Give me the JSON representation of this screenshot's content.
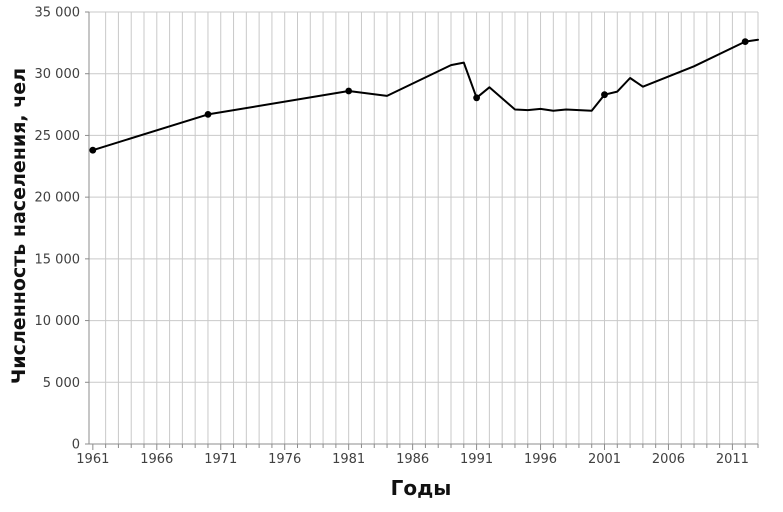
{
  "chart_data": {
    "type": "line",
    "title": "",
    "xlabel": "Годы",
    "ylabel": "Численность населения, чел",
    "x_range": [
      1960.7,
      2013
    ],
    "ylim": [
      0,
      35000
    ],
    "x_tick_years": [
      1961,
      1966,
      1971,
      1976,
      1981,
      1986,
      1991,
      1996,
      2001,
      2006,
      2011
    ],
    "x_tick_labels": [
      "1961",
      "1966",
      "1971",
      "1976",
      "1981",
      "1986",
      "1991",
      "1996",
      "2001",
      "2006",
      "2011"
    ],
    "x_minor_tick_step_years": 1,
    "y_ticks": [
      0,
      5000,
      10000,
      15000,
      20000,
      25000,
      30000,
      35000
    ],
    "y_tick_labels": [
      "0",
      "5 000",
      "10 000",
      "15 000",
      "20 000",
      "25 000",
      "30 000",
      "35 000"
    ],
    "legend": "none",
    "grid": {
      "horizontal": "major-every-5000",
      "vertical": "minor-every-year"
    },
    "colors": {
      "line": "#000000",
      "marker": "#000000",
      "gridline": "#c9c9c9",
      "axis": "#8c8c8c",
      "tick_text": "#404040",
      "title_text": "#111111",
      "background": "#ffffff"
    },
    "series": [
      {
        "points": [
          {
            "year": 1961,
            "value": 23800,
            "marker": true
          },
          {
            "year": 1970,
            "value": 26700,
            "marker": true
          },
          {
            "year": 1981,
            "value": 28600,
            "marker": true
          },
          {
            "year": 1984,
            "value": 28200
          },
          {
            "year": 1989,
            "value": 30700
          },
          {
            "year": 1990,
            "value": 30900
          },
          {
            "year": 1991,
            "value": 28050,
            "marker": true
          },
          {
            "year": 1992,
            "value": 28900
          },
          {
            "year": 1994,
            "value": 27100
          },
          {
            "year": 1995,
            "value": 27050
          },
          {
            "year": 1996,
            "value": 27150
          },
          {
            "year": 1997,
            "value": 27000
          },
          {
            "year": 1998,
            "value": 27100
          },
          {
            "year": 1999,
            "value": 27050
          },
          {
            "year": 2000,
            "value": 27000
          },
          {
            "year": 2001,
            "value": 28300,
            "marker": true
          },
          {
            "year": 2002,
            "value": 28550
          },
          {
            "year": 2003,
            "value": 29650
          },
          {
            "year": 2004,
            "value": 28950
          },
          {
            "year": 2008,
            "value": 30600
          },
          {
            "year": 2012,
            "value": 32600,
            "marker": true
          },
          {
            "year": 2013,
            "value": 32750
          }
        ]
      }
    ]
  }
}
